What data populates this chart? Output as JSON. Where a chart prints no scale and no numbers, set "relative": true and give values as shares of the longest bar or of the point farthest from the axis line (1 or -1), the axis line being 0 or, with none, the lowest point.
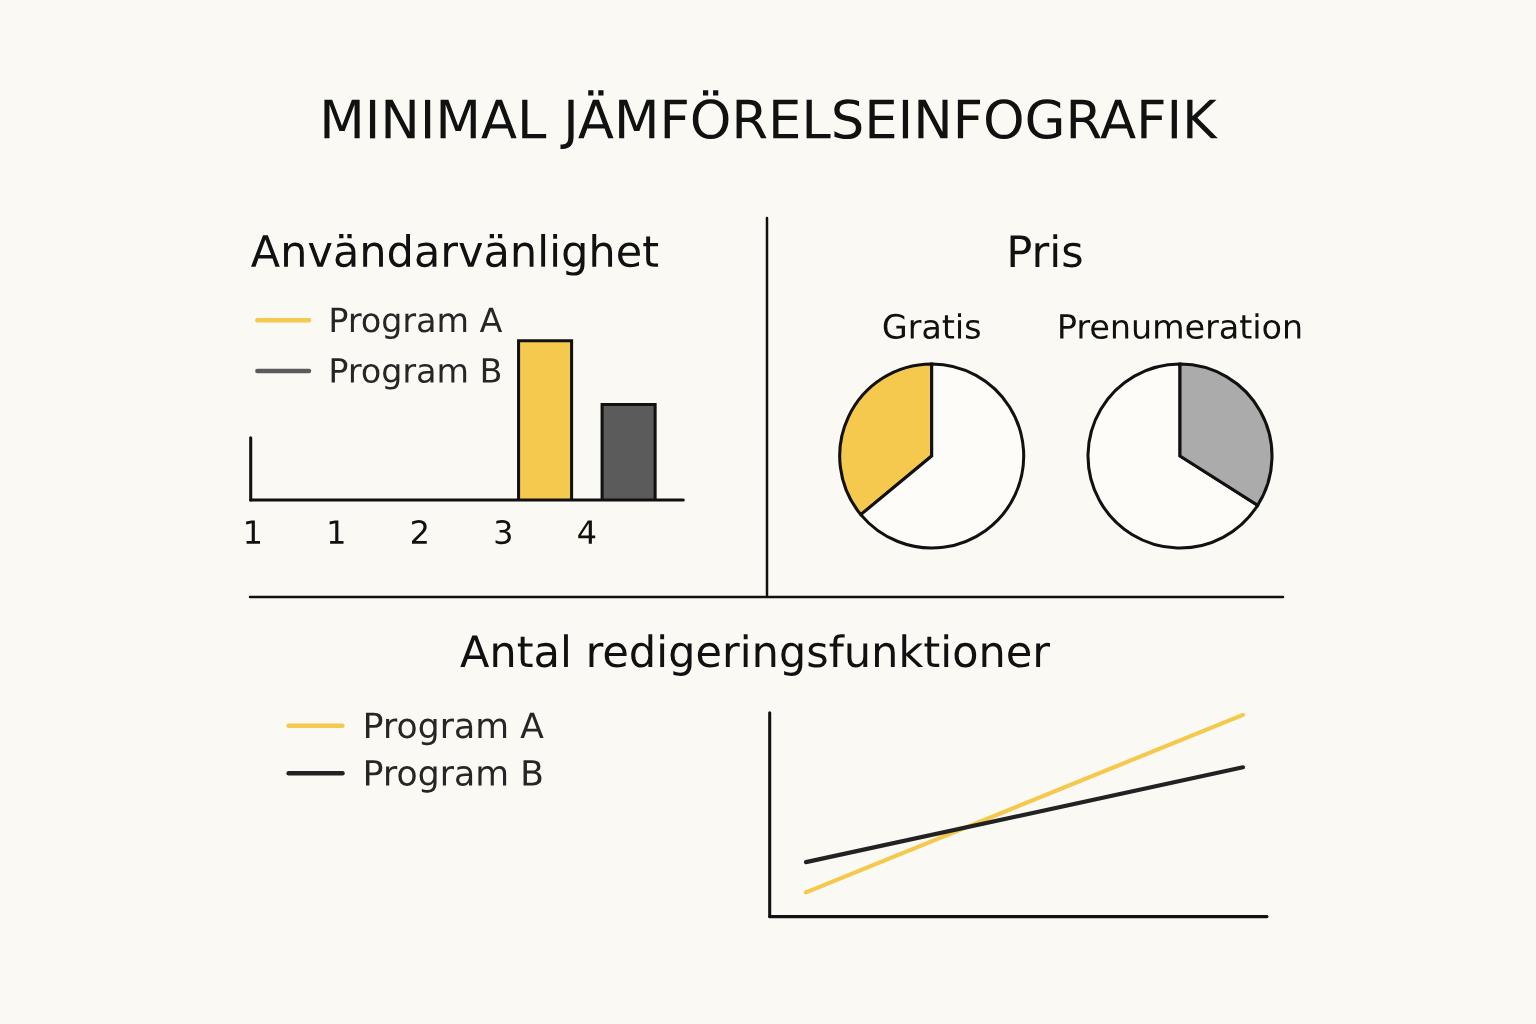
{
  "chart_data": [
    {
      "type": "other",
      "title": "MINIMAL JÄMFÖRELSEINFOGRAFIK"
    },
    {
      "type": "bar",
      "title": "Användarvänlighet",
      "relative": true,
      "categories": [
        "1",
        null,
        "1",
        null,
        "2",
        null,
        "3",
        null,
        "4",
        null
      ],
      "legend": "top left",
      "series": [
        {
          "name": "Program A",
          "color": "#f4c94e",
          "values": [
            null,
            null,
            null,
            null,
            null,
            null,
            null,
            1,
            null,
            null
          ]
        },
        {
          "name": "Program B",
          "color": "#5b5b5b",
          "values": [
            null,
            null,
            null,
            null,
            null,
            null,
            null,
            null,
            null,
            0.6
          ]
        }
      ]
    },
    {
      "type": "other",
      "title": "Pris"
    },
    {
      "type": "pie",
      "title": "Gratis",
      "categories": [
        null,
        null
      ],
      "values": [
        36,
        64
      ],
      "colors": [
        "#f4c94e",
        "#fdfcf8"
      ]
    },
    {
      "type": "pie",
      "title": "Prenumeration",
      "categories": [
        null,
        null
      ],
      "values": [
        66,
        34
      ],
      "colors": [
        "#fdfcf8",
        "#ababab"
      ]
    },
    {
      "type": "line",
      "title": "Antal redigeringsfunktioner",
      "categories": [
        null,
        null
      ],
      "relative": true,
      "legend": "left",
      "ref_lines": [
        {
          "axis": "y",
          "value": 0,
          "color": "#111111"
        }
      ],
      "series": [
        {
          "name": "Program A",
          "color": "#f4c94e",
          "values": [
            0.12,
            1
          ]
        },
        {
          "name": "Program B",
          "color": "#222222",
          "values": [
            0.27,
            0.74
          ]
        }
      ]
    }
  ]
}
